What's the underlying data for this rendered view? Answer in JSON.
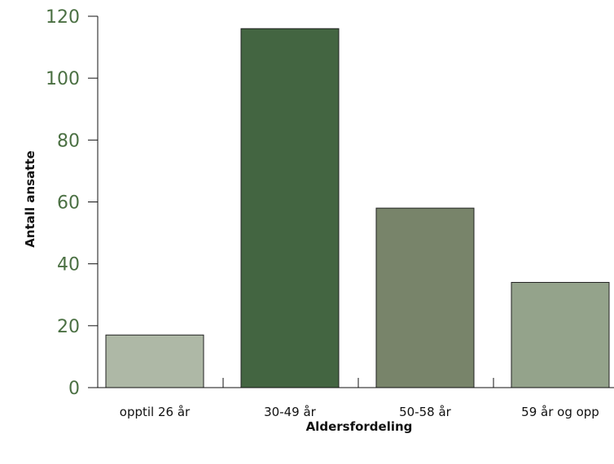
{
  "chart_data": {
    "type": "bar",
    "categories": [
      "opptil 26 år",
      "30-49 år",
      "50-58 år",
      "59 år og opp"
    ],
    "values": [
      17,
      116,
      58,
      34
    ],
    "bar_colors": [
      "#aeb8a6",
      "#436541",
      "#78846a",
      "#94a38b"
    ],
    "xlabel": "Aldersfordeling",
    "ylabel": "Antall ansatte",
    "ylim": [
      0,
      120
    ],
    "yticks": [
      0,
      20,
      40,
      60,
      80,
      100,
      120
    ],
    "tick_label_color": "#4b7043",
    "grid": false,
    "legend": "none"
  }
}
